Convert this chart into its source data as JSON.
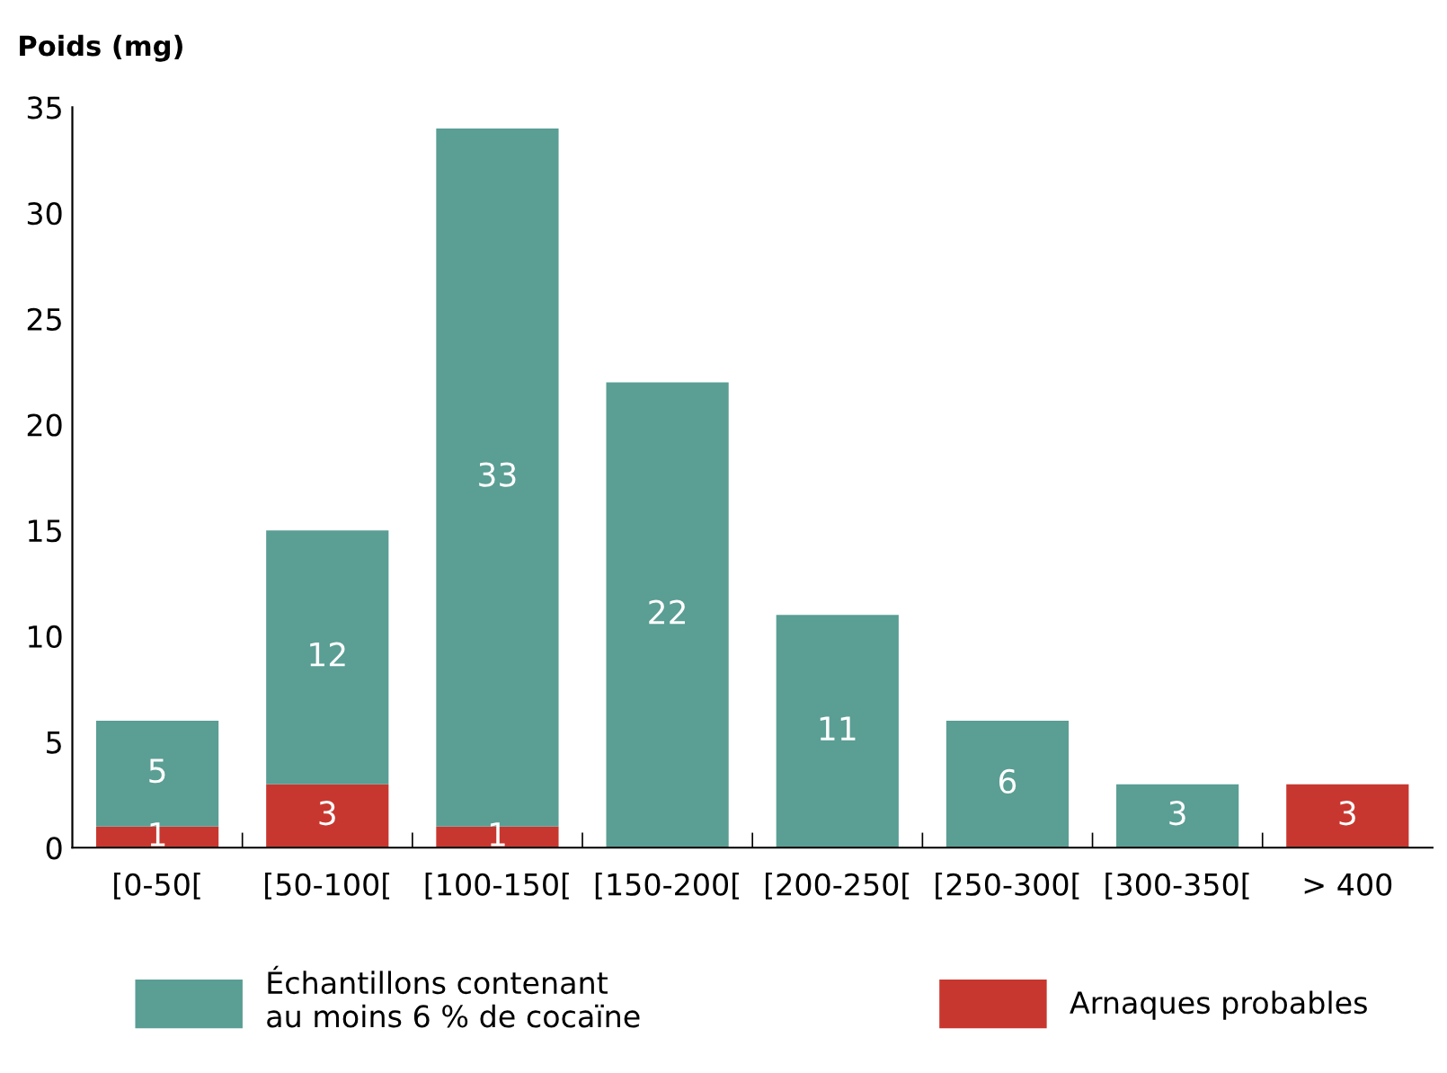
{
  "chart_data": {
    "type": "bar",
    "stacked": true,
    "ylabel": "Poids (mg)",
    "categories": [
      "[0-50[",
      "[50-100[",
      "[100-150[",
      "[150-200[",
      "[200-250[",
      "[250-300[",
      "[300-350[",
      "> 400"
    ],
    "series": [
      {
        "name": "Arnaques probables",
        "color": "#c8372f",
        "values": [
          1,
          3,
          1,
          0,
          0,
          0,
          0,
          3
        ],
        "value_labels": [
          "1",
          "3",
          "1",
          null,
          null,
          null,
          null,
          "3"
        ]
      },
      {
        "name": "Échantillons contenant\nau moins 6 % de cocaïne",
        "color": "#5a9e94",
        "values": [
          5,
          12,
          33,
          22,
          11,
          6,
          3,
          0
        ],
        "value_labels": [
          "5",
          "12",
          "33",
          "22",
          "11",
          "6",
          "3",
          null
        ]
      }
    ],
    "ylim": [
      0,
      35
    ],
    "yticks": [
      0,
      5,
      10,
      15,
      20,
      25,
      30,
      35
    ],
    "grid": false,
    "legend": "bottom"
  }
}
